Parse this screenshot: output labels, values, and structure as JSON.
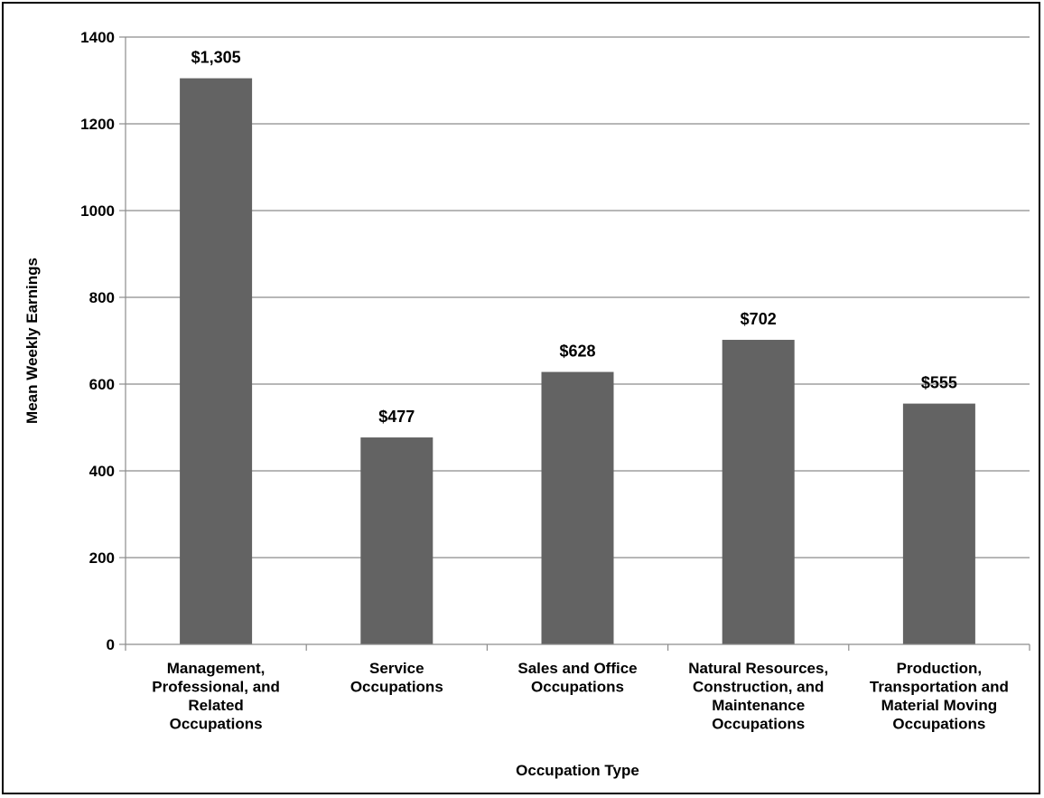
{
  "chart_data": {
    "type": "bar",
    "categories": [
      [
        "Management,",
        "Professional, and",
        "Related",
        "Occupations"
      ],
      [
        "Service",
        "Occupations"
      ],
      [
        "Sales and Office",
        "Occupations"
      ],
      [
        "Natural Resources,",
        "Construction, and",
        "Maintenance",
        "Occupations"
      ],
      [
        "Production,",
        "Transportation and",
        "Material Moving",
        "Occupations"
      ]
    ],
    "values": [
      1305,
      477,
      628,
      702,
      555
    ],
    "data_labels": [
      "$1,305",
      "$477",
      "$628",
      "$702",
      "$555"
    ],
    "xlabel": "Occupation Type",
    "ylabel": "Mean Weekly Earnings",
    "ylim": [
      0,
      1400
    ],
    "yticks": [
      0,
      200,
      400,
      600,
      800,
      1000,
      1200,
      1400
    ],
    "grid": true,
    "legend": "none",
    "colors": {
      "bar": "#636363",
      "grid": "#8c8c8c",
      "axis": "#8c8c8c",
      "text": "#000000"
    }
  }
}
